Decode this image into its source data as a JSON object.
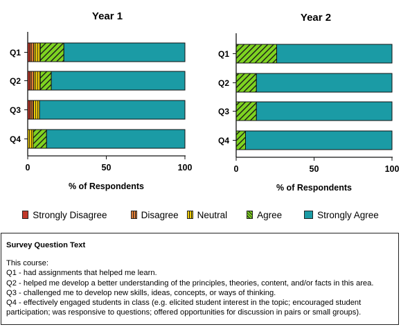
{
  "colors": {
    "strongly_disagree": "#c0392b",
    "disagree": "#e8833a",
    "neutral": "#f5d20a",
    "agree": "#7ed321",
    "strongly_agree": "#1b9ba5",
    "hatch": "#1a1a1a"
  },
  "legend": [
    {
      "label": "Strongly Disagree",
      "key": "strongly_disagree"
    },
    {
      "label": "Disagree",
      "key": "disagree"
    },
    {
      "label": "Neutral",
      "key": "neutral"
    },
    {
      "label": "Agree",
      "key": "agree"
    },
    {
      "label": "Strongly Agree",
      "key": "strongly_agree"
    }
  ],
  "chart_data": [
    {
      "type": "bar",
      "orientation": "horizontal",
      "stacked": true,
      "title": "Year 1",
      "xlabel": "% of Respondents",
      "ylabel": "",
      "xlim": [
        0,
        100
      ],
      "xticks": [
        0,
        50,
        100
      ],
      "categories": [
        "Q1",
        "Q2",
        "Q3",
        "Q4"
      ],
      "series": [
        {
          "name": "Strongly Disagree",
          "values": [
            1.5,
            1.5,
            1.5,
            0
          ]
        },
        {
          "name": "Disagree",
          "values": [
            2.5,
            2.5,
            2.0,
            0
          ]
        },
        {
          "name": "Neutral",
          "values": [
            4,
            4,
            4,
            3.5
          ]
        },
        {
          "name": "Agree",
          "values": [
            15,
            7,
            0,
            8.5
          ]
        },
        {
          "name": "Strongly Agree",
          "values": [
            77,
            85,
            92.5,
            88
          ]
        }
      ]
    },
    {
      "type": "bar",
      "orientation": "horizontal",
      "stacked": true,
      "title": "Year 2",
      "xlabel": "% of Respondents",
      "ylabel": "",
      "xlim": [
        0,
        100
      ],
      "xticks": [
        0,
        50,
        100
      ],
      "categories": [
        "Q1",
        "Q2",
        "Q3",
        "Q4"
      ],
      "series": [
        {
          "name": "Strongly Disagree",
          "values": [
            0,
            0,
            0,
            0
          ]
        },
        {
          "name": "Disagree",
          "values": [
            0,
            0,
            0,
            0
          ]
        },
        {
          "name": "Neutral",
          "values": [
            0,
            0,
            0,
            0
          ]
        },
        {
          "name": "Agree",
          "values": [
            26,
            13,
            13,
            6
          ]
        },
        {
          "name": "Strongly Agree",
          "values": [
            74,
            87,
            87,
            94
          ]
        }
      ]
    }
  ],
  "survey": {
    "title": "Survey Question Text",
    "lines": [
      "This course:",
      "Q1 - had assignments that helped me learn.",
      "Q2 - helped me develop a better understanding of the principles, theories, content, and/or facts in this area.",
      "Q3 - challenged me to develop new skills, ideas, concepts, or ways of thinking.",
      "Q4 - effectively engaged students in class (e.g. elicited student interest in the topic; encouraged student participation; was responsive to questions; offered opportunities for discussion in pairs or small groups)."
    ]
  }
}
